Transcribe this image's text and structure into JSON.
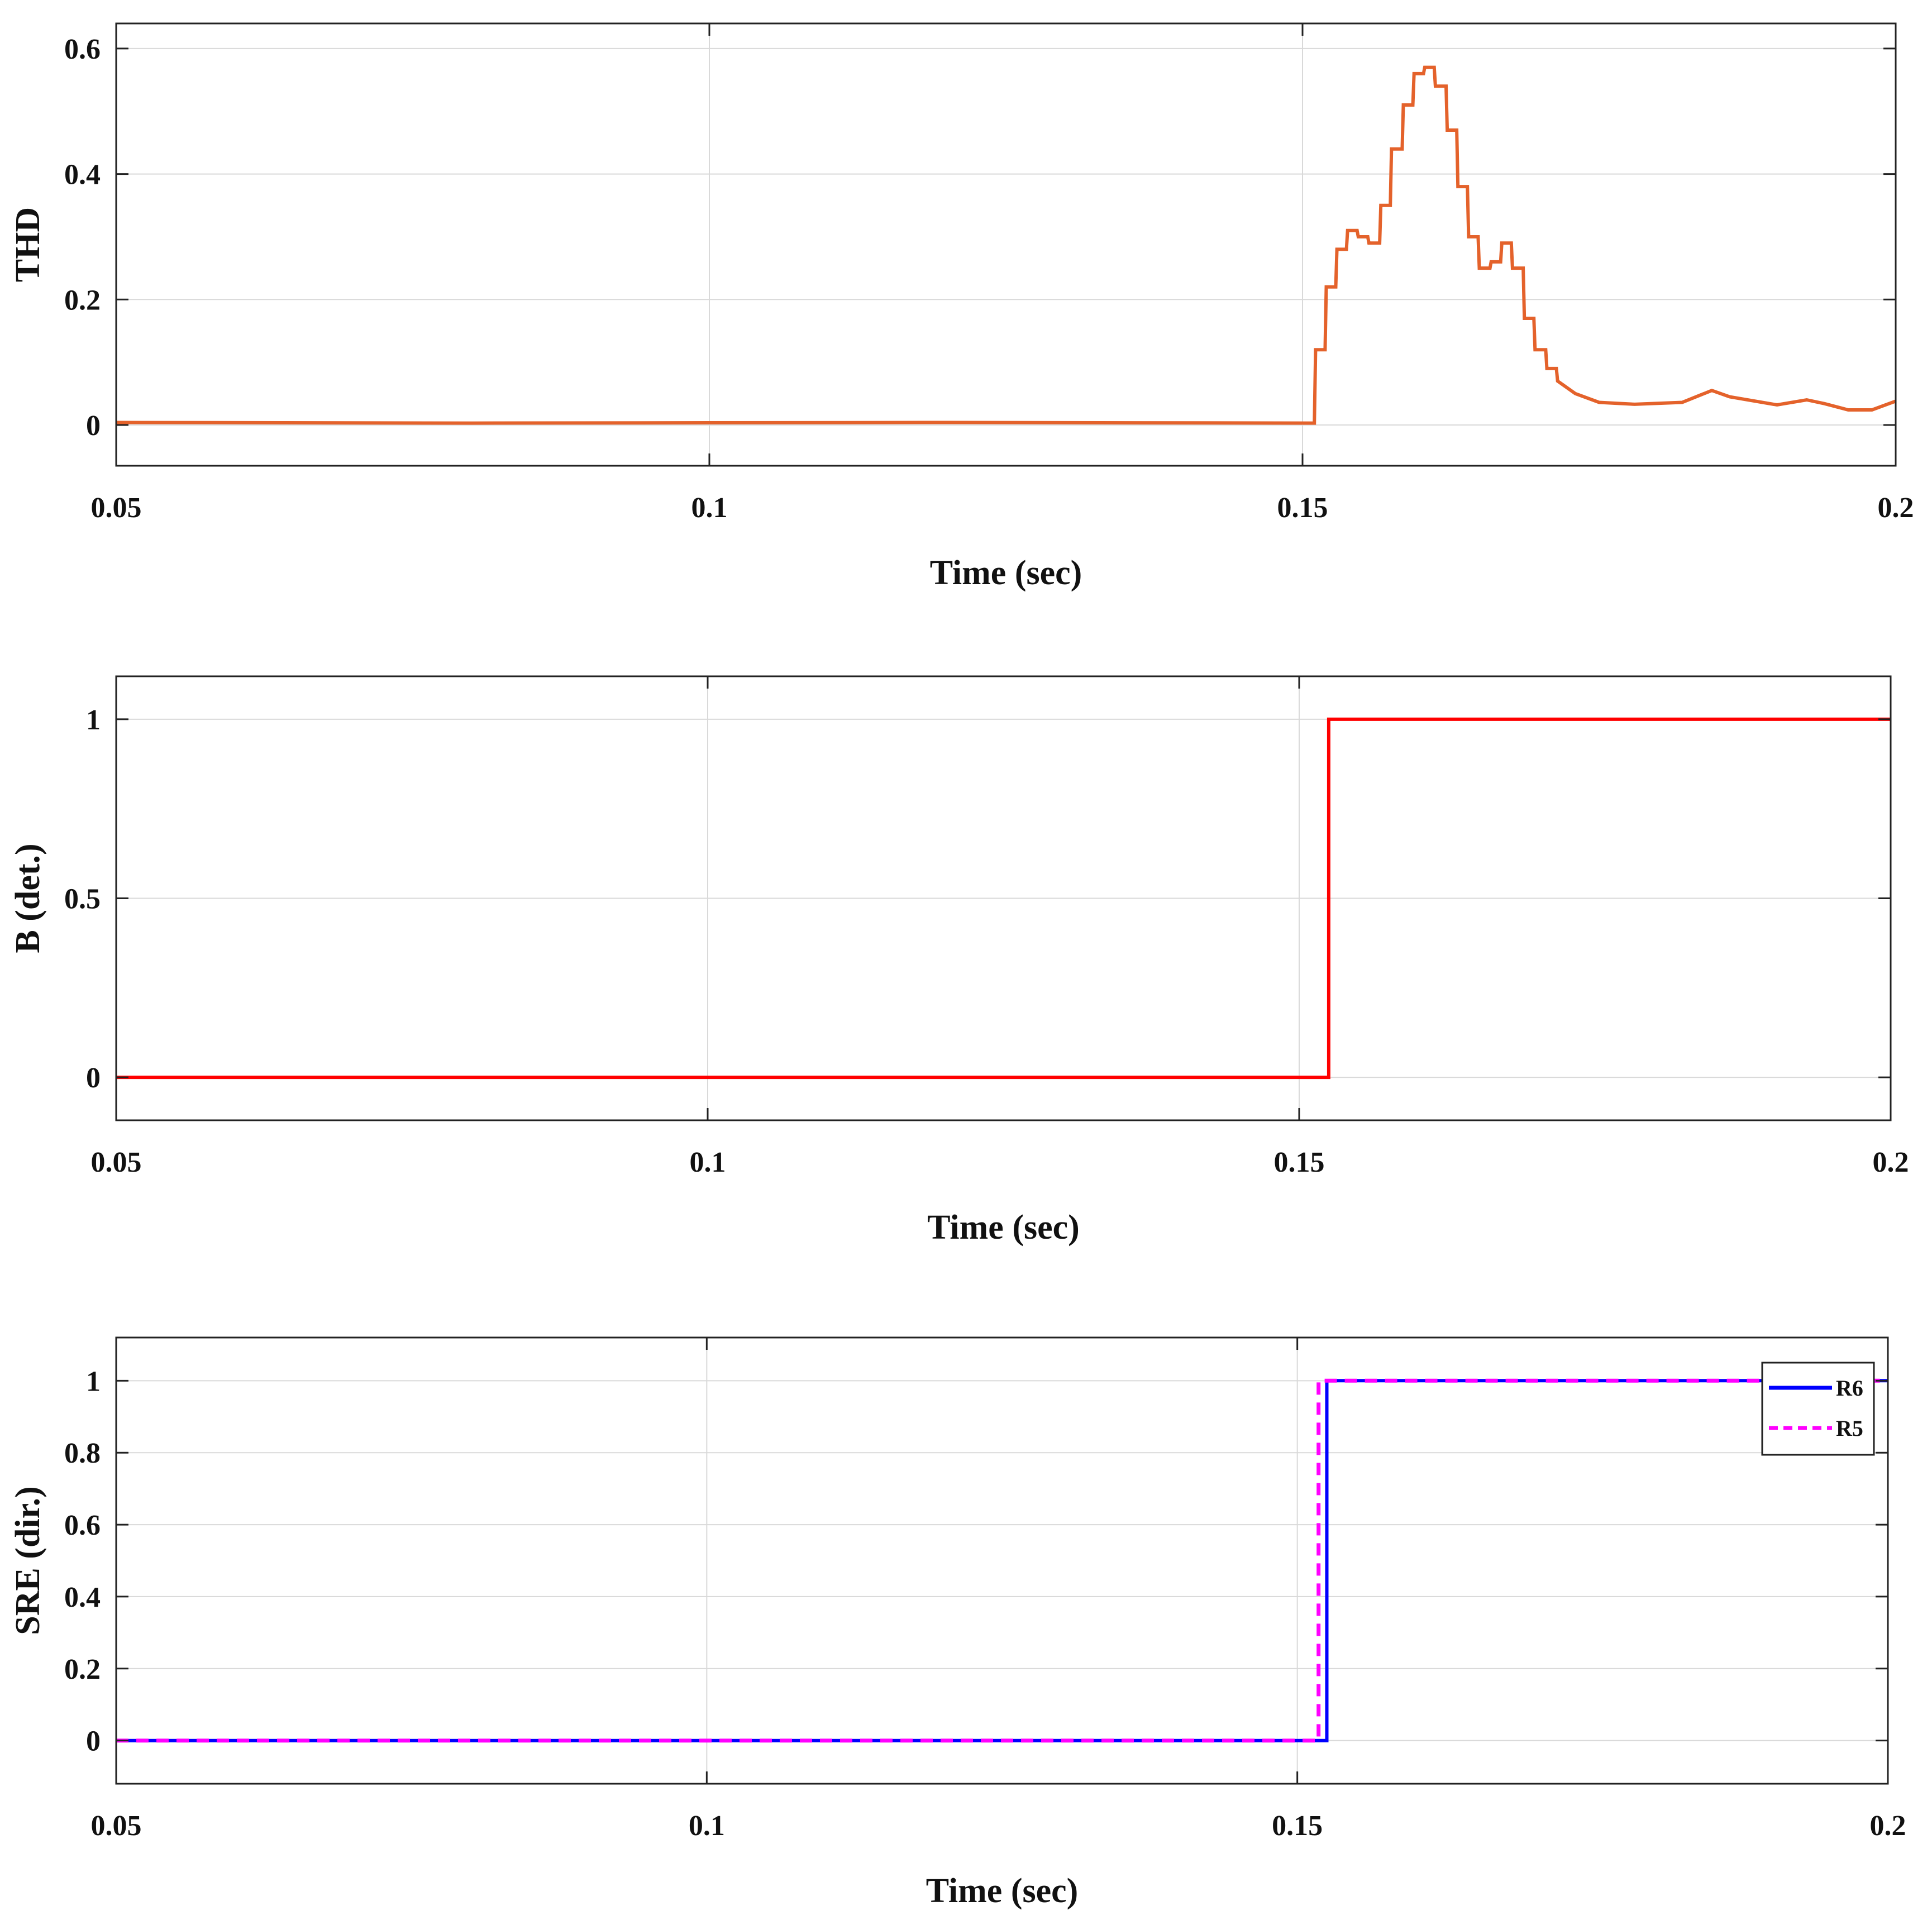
{
  "chart_data": [
    {
      "type": "line",
      "xlabel": "Time (sec)",
      "ylabel": "THD",
      "xlim": [
        0.05,
        0.2
      ],
      "ylim": [
        -0.065,
        0.64
      ],
      "xticks": [
        0.05,
        0.1,
        0.15,
        0.2
      ],
      "xtick_labels": [
        "0.05",
        "0.1",
        "0.15",
        "0.2"
      ],
      "yticks": [
        0,
        0.2,
        0.4,
        0.6
      ],
      "ytick_labels": [
        "0",
        "0.2",
        "0.4",
        "0.6"
      ],
      "grid": true,
      "series": [
        {
          "color": "#E4622B",
          "style": "solid",
          "x": [
            0.05,
            0.08,
            0.12,
            0.151,
            0.1511,
            0.1519,
            0.152,
            0.1528,
            0.1529,
            0.1537,
            0.1538,
            0.1546,
            0.1547,
            0.1555,
            0.1556,
            0.1565,
            0.1566,
            0.1574,
            0.1575,
            0.1584,
            0.1585,
            0.1593,
            0.1594,
            0.1602,
            0.1603,
            0.1611,
            0.1612,
            0.1621,
            0.1622,
            0.163,
            0.1631,
            0.1639,
            0.164,
            0.1648,
            0.1649,
            0.1658,
            0.1659,
            0.1667,
            0.1668,
            0.1676,
            0.1677,
            0.1686,
            0.1687,
            0.1695,
            0.1696,
            0.1705,
            0.1706,
            0.1714,
            0.1715,
            0.173,
            0.175,
            0.178,
            0.182,
            0.1845,
            0.186,
            0.19,
            0.1925,
            0.194,
            0.196,
            0.198,
            0.2
          ],
          "y": [
            0.004,
            0.003,
            0.004,
            0.003,
            0.12,
            0.12,
            0.22,
            0.22,
            0.28,
            0.28,
            0.31,
            0.31,
            0.3,
            0.3,
            0.29,
            0.29,
            0.35,
            0.35,
            0.44,
            0.44,
            0.51,
            0.51,
            0.56,
            0.56,
            0.57,
            0.57,
            0.54,
            0.54,
            0.47,
            0.47,
            0.38,
            0.38,
            0.3,
            0.3,
            0.25,
            0.25,
            0.26,
            0.26,
            0.29,
            0.29,
            0.25,
            0.25,
            0.17,
            0.17,
            0.12,
            0.12,
            0.09,
            0.09,
            0.07,
            0.05,
            0.036,
            0.033,
            0.036,
            0.055,
            0.045,
            0.032,
            0.04,
            0.034,
            0.024,
            0.024,
            0.038
          ]
        }
      ]
    },
    {
      "type": "line",
      "xlabel": "Time (sec)",
      "ylabel": "B (det.)",
      "xlim": [
        0.05,
        0.2
      ],
      "ylim": [
        -0.12,
        1.12
      ],
      "xticks": [
        0.05,
        0.1,
        0.15,
        0.2
      ],
      "xtick_labels": [
        "0.05",
        "0.1",
        "0.15",
        "0.2"
      ],
      "yticks": [
        0,
        0.5,
        1
      ],
      "ytick_labels": [
        "0",
        "0.5",
        "1"
      ],
      "grid": true,
      "series": [
        {
          "color": "#FF0000",
          "style": "solid",
          "x": [
            0.05,
            0.1525,
            0.1525,
            0.2
          ],
          "y": [
            0,
            0,
            1,
            1
          ]
        }
      ]
    },
    {
      "type": "line",
      "xlabel": "Time (sec)",
      "ylabel": "SRE (dir.)",
      "xlim": [
        0.05,
        0.2
      ],
      "ylim": [
        -0.12,
        1.12
      ],
      "xticks": [
        0.05,
        0.1,
        0.15,
        0.2
      ],
      "xtick_labels": [
        "0.05",
        "0.1",
        "0.15",
        "0.2"
      ],
      "yticks": [
        0,
        0.2,
        0.4,
        0.6,
        0.8,
        1
      ],
      "ytick_labels": [
        "0",
        "0.2",
        "0.4",
        "0.6",
        "0.8",
        "1"
      ],
      "grid": true,
      "legend_position": "top-right",
      "series": [
        {
          "name": "R6",
          "color": "#0000FF",
          "style": "solid",
          "x": [
            0.05,
            0.1525,
            0.1525,
            0.2
          ],
          "y": [
            0,
            0,
            1,
            1
          ]
        },
        {
          "name": "R5",
          "color": "#FF00FF",
          "style": "dashed",
          "x": [
            0.05,
            0.1518,
            0.1518,
            0.2
          ],
          "y": [
            0,
            0,
            1,
            1
          ]
        }
      ]
    }
  ]
}
